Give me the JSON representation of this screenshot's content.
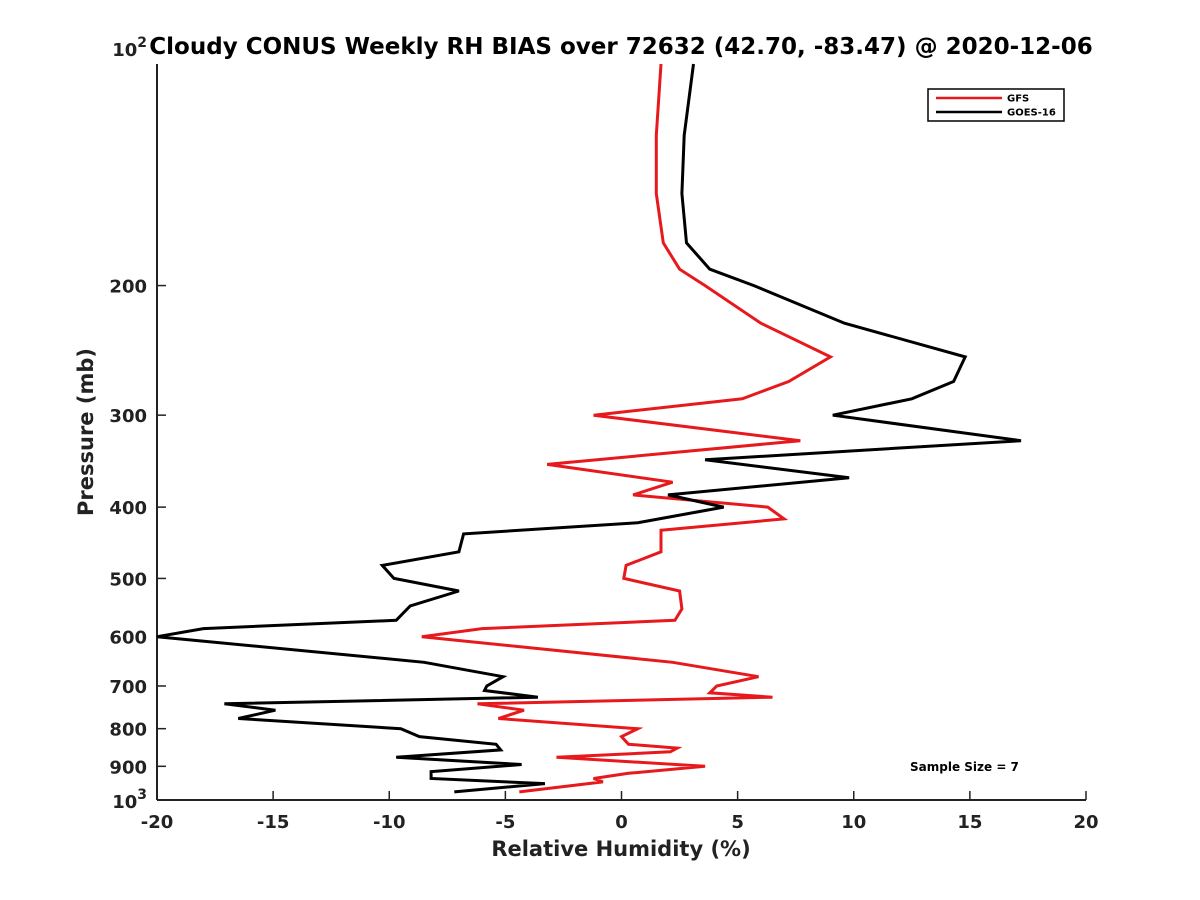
{
  "chart_data": {
    "type": "line",
    "title": "Cloudy CONUS Weekly RH BIAS over 72632 (42.70, -83.47) @ 2020-12-06",
    "xlabel": "Relative Humidity (%)",
    "ylabel": "Pressure (mb)",
    "xlim": [
      -20,
      20
    ],
    "ylim": [
      100,
      1000
    ],
    "y_scale": "log",
    "y_reversed": true,
    "grid": false,
    "legend_position": "top-right",
    "x_ticks": [
      -20,
      -15,
      -10,
      -5,
      0,
      5,
      10,
      15,
      20
    ],
    "x_tick_labels": [
      "-20",
      "-15",
      "-10",
      "-5",
      "0",
      "5",
      "10",
      "15",
      "20"
    ],
    "y_ticks": [
      200,
      300,
      400,
      500,
      600,
      700,
      800,
      900
    ],
    "y_tick_labels": [
      "200",
      "300",
      "400",
      "500",
      "600",
      "700",
      "800",
      "900"
    ],
    "y_tick_top": {
      "base": "10",
      "exp": "2"
    },
    "y_tick_bottom": {
      "base": "10",
      "exp": "3"
    },
    "series": [
      {
        "name": "GFS",
        "color": "#e8191c",
        "points": [
          [
            1.7,
            100
          ],
          [
            1.5,
            125
          ],
          [
            1.5,
            150
          ],
          [
            1.8,
            175
          ],
          [
            2.5,
            190
          ],
          [
            3.6,
            200
          ],
          [
            6.0,
            225
          ],
          [
            9.0,
            250
          ],
          [
            7.2,
            270
          ],
          [
            5.2,
            285
          ],
          [
            -1.2,
            300
          ],
          [
            7.7,
            325
          ],
          [
            -3.2,
            350
          ],
          [
            2.2,
            370
          ],
          [
            0.5,
            385
          ],
          [
            6.3,
            400
          ],
          [
            7.0,
            415
          ],
          [
            1.7,
            430
          ],
          [
            1.7,
            460
          ],
          [
            0.2,
            480
          ],
          [
            0.1,
            500
          ],
          [
            2.5,
            520
          ],
          [
            2.6,
            550
          ],
          [
            2.3,
            570
          ],
          [
            -6.0,
            585
          ],
          [
            -8.6,
            600
          ],
          [
            2.2,
            650
          ],
          [
            5.9,
            680
          ],
          [
            4.1,
            700
          ],
          [
            3.8,
            715
          ],
          [
            6.5,
            725
          ],
          [
            -6.2,
            740
          ],
          [
            -4.2,
            755
          ],
          [
            -5.3,
            775
          ],
          [
            0.7,
            800
          ],
          [
            0.0,
            820
          ],
          [
            0.3,
            840
          ],
          [
            2.4,
            850
          ],
          [
            2.1,
            860
          ],
          [
            -2.8,
            875
          ],
          [
            3.6,
            900
          ],
          [
            0.3,
            920
          ],
          [
            -1.2,
            935
          ],
          [
            -0.8,
            945
          ],
          [
            -4.4,
            975
          ]
        ]
      },
      {
        "name": "GOES-16",
        "color": "#000000",
        "points": [
          [
            3.1,
            100
          ],
          [
            2.7,
            125
          ],
          [
            2.6,
            150
          ],
          [
            2.8,
            175
          ],
          [
            3.8,
            190
          ],
          [
            5.7,
            200
          ],
          [
            9.6,
            225
          ],
          [
            14.8,
            250
          ],
          [
            14.3,
            270
          ],
          [
            12.5,
            285
          ],
          [
            9.1,
            300
          ],
          [
            17.2,
            325
          ],
          [
            3.6,
            345
          ],
          [
            9.8,
            365
          ],
          [
            2.0,
            385
          ],
          [
            4.4,
            400
          ],
          [
            0.7,
            420
          ],
          [
            -6.8,
            435
          ],
          [
            -7.0,
            460
          ],
          [
            -10.3,
            480
          ],
          [
            -9.8,
            500
          ],
          [
            -7.0,
            520
          ],
          [
            -9.1,
            545
          ],
          [
            -9.7,
            570
          ],
          [
            -18.0,
            585
          ],
          [
            -20.0,
            600
          ],
          [
            -8.5,
            650
          ],
          [
            -5.1,
            680
          ],
          [
            -5.8,
            700
          ],
          [
            -5.9,
            710
          ],
          [
            -3.6,
            725
          ],
          [
            -17.1,
            740
          ],
          [
            -14.9,
            755
          ],
          [
            -16.5,
            775
          ],
          [
            -9.5,
            800
          ],
          [
            -8.7,
            820
          ],
          [
            -5.4,
            840
          ],
          [
            -5.2,
            855
          ],
          [
            -9.7,
            875
          ],
          [
            -4.3,
            895
          ],
          [
            -8.2,
            915
          ],
          [
            -8.2,
            935
          ],
          [
            -3.3,
            950
          ],
          [
            -7.2,
            975
          ]
        ]
      }
    ],
    "annotation": "Sample Size = 7"
  }
}
